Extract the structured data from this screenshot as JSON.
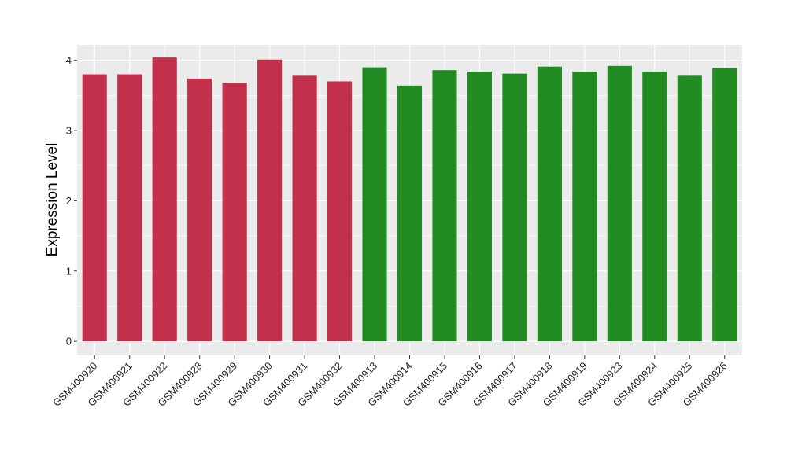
{
  "chart_data": {
    "type": "bar",
    "title": "",
    "xlabel": "",
    "ylabel": "Expression Level",
    "ylim": [
      -0.2,
      4.22
    ],
    "yticks": [
      0,
      1,
      2,
      3,
      4
    ],
    "grid": true,
    "background": "#ebebeb",
    "categories": [
      "GSM400920",
      "GSM400921",
      "GSM400922",
      "GSM400928",
      "GSM400929",
      "GSM400930",
      "GSM400931",
      "GSM400932",
      "GSM400913",
      "GSM400914",
      "GSM400915",
      "GSM400916",
      "GSM400917",
      "GSM400918",
      "GSM400919",
      "GSM400923",
      "GSM400924",
      "GSM400925",
      "GSM400926"
    ],
    "values": [
      3.8,
      3.8,
      4.04,
      3.74,
      3.68,
      4.01,
      3.78,
      3.7,
      3.9,
      3.64,
      3.86,
      3.84,
      3.81,
      3.91,
      3.84,
      3.92,
      3.84,
      3.78,
      3.89
    ],
    "groups": [
      "a",
      "a",
      "a",
      "a",
      "a",
      "a",
      "a",
      "a",
      "b",
      "b",
      "b",
      "b",
      "b",
      "b",
      "b",
      "b",
      "b",
      "b",
      "b"
    ],
    "group_colors": {
      "a": "#c3304b",
      "b": "#228b22"
    }
  }
}
